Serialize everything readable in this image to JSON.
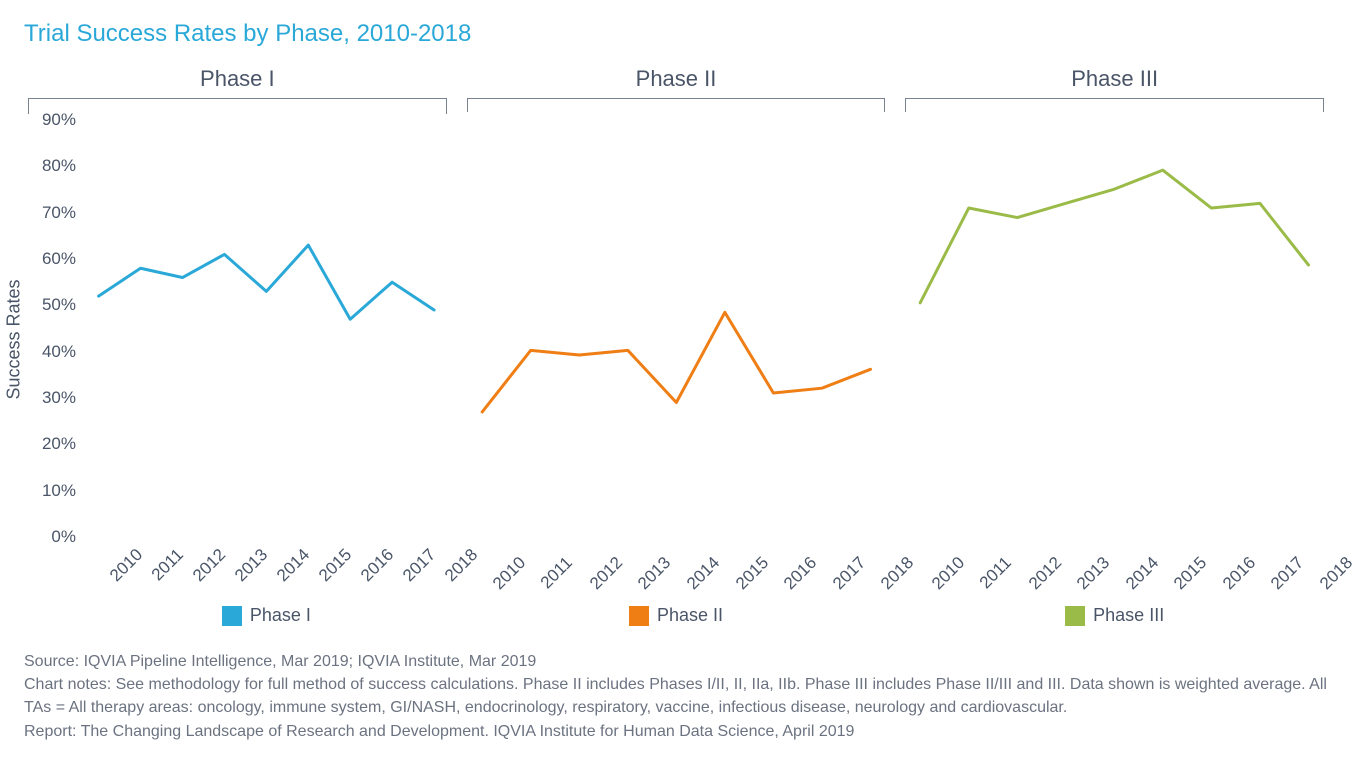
{
  "title": "Trial Success Rates by Phase, 2010-2018",
  "title_color": "#2aa8d8",
  "background_color": "#ffffff",
  "text_color": "#4a5568",
  "yaxis": {
    "label": "Success Rates",
    "min": 0,
    "max": 90,
    "tick_step": 10,
    "tick_suffix": "%",
    "show_on_first_only": true,
    "label_fontsize": 18,
    "tick_fontsize": 17
  },
  "xaxis": {
    "categories": [
      "2010",
      "2011",
      "2012",
      "2013",
      "2014",
      "2015",
      "2016",
      "2017",
      "2018"
    ],
    "tick_fontsize": 17,
    "tick_rotation": -45
  },
  "line_width": 3,
  "panels": [
    {
      "name": "Phase I",
      "color": "#2aa8d8",
      "values": [
        52,
        58,
        56,
        61,
        53,
        63,
        47,
        55,
        49
      ]
    },
    {
      "name": "Phase II",
      "color": "#ef7e15",
      "values": [
        28,
        41,
        40,
        41,
        30,
        49,
        32,
        33,
        37
      ]
    },
    {
      "name": "Phase III",
      "color": "#9bbb48",
      "values": [
        51,
        71,
        69,
        72,
        75,
        79,
        71,
        72,
        59
      ]
    }
  ],
  "footer": {
    "source": "Source: IQVIA Pipeline Intelligence, Mar 2019; IQVIA Institute, Mar 2019",
    "notes": "Chart notes: See methodology for full method of success calculations. Phase II includes Phases I/II, II, IIa, IIb. Phase III includes Phase II/III and III. Data shown is weighted average. All TAs = All therapy areas: oncology, immune system, GI/NASH, endocrinology, respiratory, vaccine, infectious disease, neurology and cardiovascular.",
    "report": "Report: The Changing Landscape of Research and Development. IQVIA Institute for Human Data Science, April 2019",
    "fontsize": 16,
    "color": "#6b7280"
  }
}
